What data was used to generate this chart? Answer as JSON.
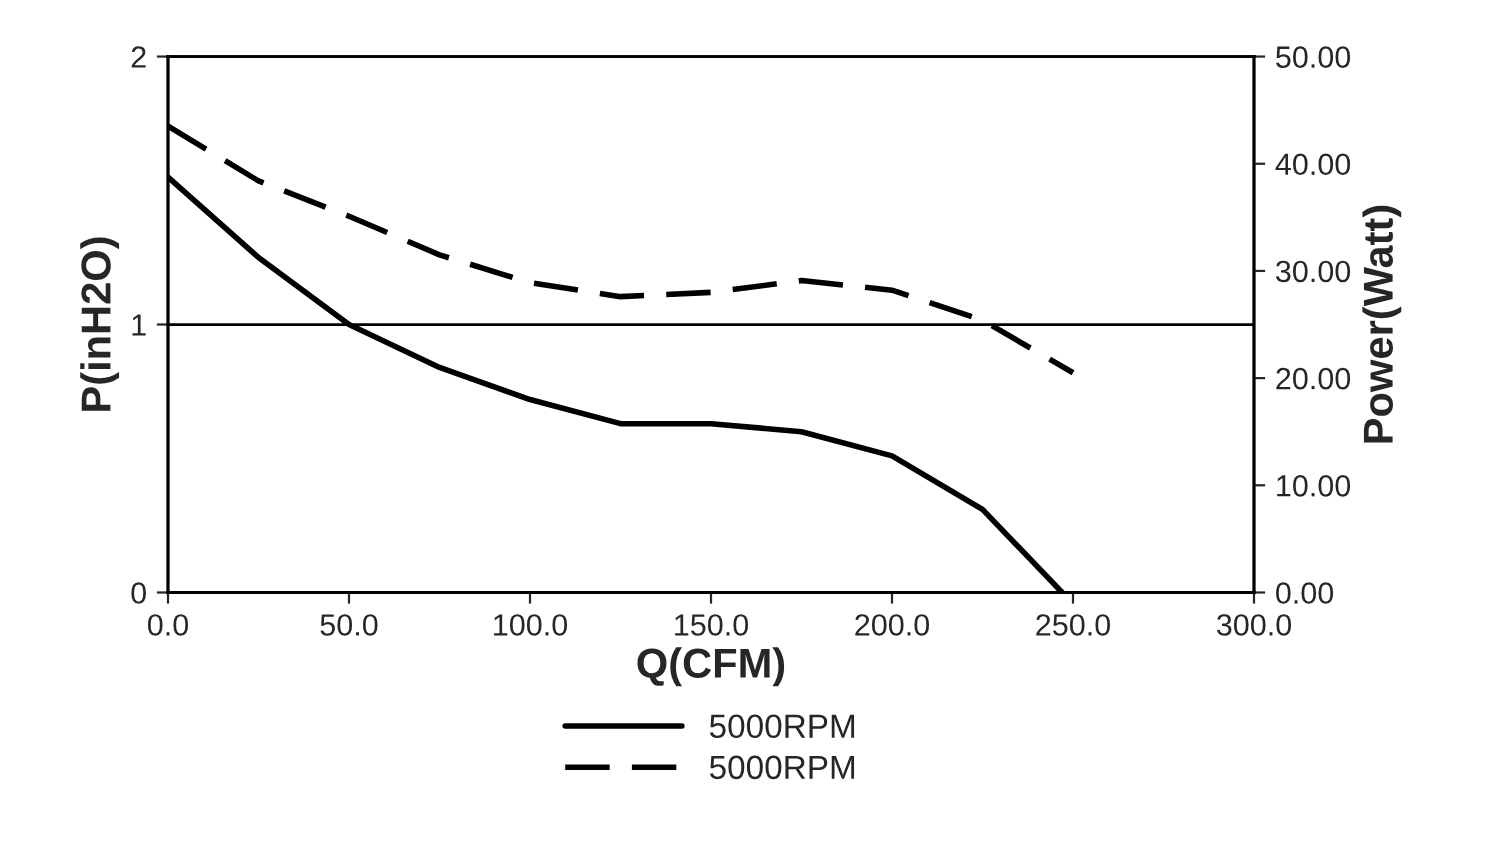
{
  "chart_data": {
    "type": "line",
    "xlabel": "Q(CFM)",
    "ylabel": "P(inH2O)",
    "y2label": "Power(Watt)",
    "series": [
      {
        "name": "5000RPM",
        "color": "#000000",
        "line_style": "solid",
        "x": [
          0,
          25,
          50,
          75,
          100,
          125,
          150,
          175,
          200,
          225,
          247
        ],
        "values": [
          1.55,
          1.25,
          1.0,
          0.84,
          0.72,
          0.63,
          0.63,
          0.6,
          0.51,
          0.31,
          0
        ]
      },
      {
        "name": "5000RPM",
        "color": "#000000",
        "line_style": "dashed",
        "axis": "y2",
        "x": [
          0,
          25,
          50,
          75,
          100,
          125,
          150,
          175,
          200,
          225,
          250
        ],
        "values": [
          43.5,
          38.4,
          35.1,
          31.5,
          28.9,
          27.6,
          28.0,
          29.1,
          28.2,
          25.4,
          20.5
        ]
      }
    ],
    "xlim": [
      0,
      300
    ],
    "xticks": [
      {
        "value": 0,
        "label": "0.0"
      },
      {
        "value": 50,
        "label": "50.0"
      },
      {
        "value": 100,
        "label": "100.0"
      },
      {
        "value": 150,
        "label": "150.0"
      },
      {
        "value": 200,
        "label": "200.0"
      },
      {
        "value": 250,
        "label": "250.0"
      },
      {
        "value": 300,
        "label": "300.0"
      }
    ],
    "ylim": [
      0,
      2
    ],
    "yticks": [
      0,
      1,
      2
    ],
    "y2lim": [
      0,
      50
    ],
    "y2ticks": [
      {
        "value": 0,
        "label": "0.00"
      },
      {
        "value": 10,
        "label": "10.00"
      },
      {
        "value": 20,
        "label": "20.00"
      },
      {
        "value": 30,
        "label": "30.00"
      },
      {
        "value": 40,
        "label": "40.00"
      },
      {
        "value": 50,
        "label": "50.00"
      }
    ],
    "ref_lines": [
      {
        "axis": "y",
        "value": 1,
        "color": "#000000",
        "line_style": "solid"
      }
    ],
    "grid": false,
    "legend": "bottom",
    "marker": "none"
  }
}
